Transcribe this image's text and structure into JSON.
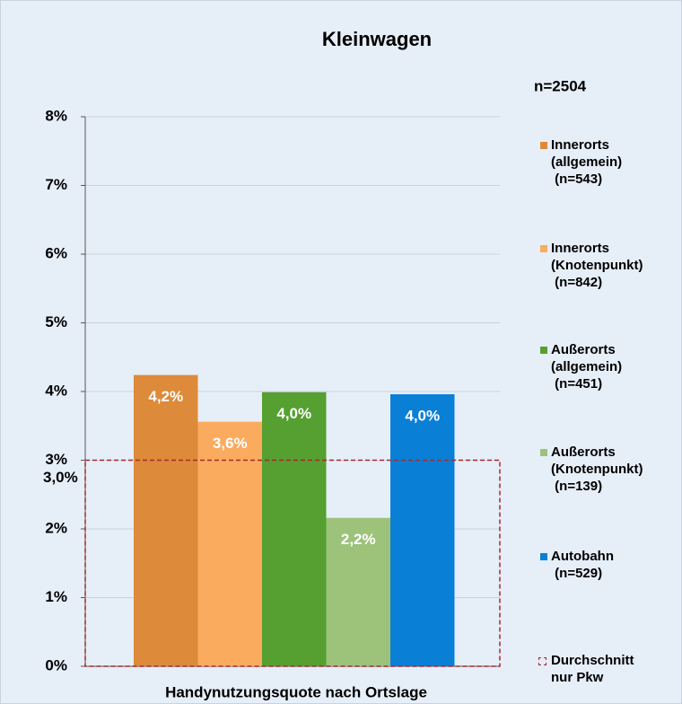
{
  "chart_data": {
    "type": "bar",
    "title": "Kleinwagen",
    "subtitle": "n=2504",
    "xlabel": "Handynutzungsquote nach Ortslage",
    "series": [
      {
        "name": "Innerorts\n(allgemein)\n (n=543)",
        "color": "#dd8a3a",
        "values": [
          4.24
        ],
        "value_labels": [
          "4,2%"
        ]
      },
      {
        "name": "Innerorts\n(Knotenpunkt)\n (n=842)",
        "color": "#fbab5e",
        "values": [
          3.56
        ],
        "value_labels": [
          "3,6%"
        ]
      },
      {
        "name": "Außerorts\n(allgemein)\n (n=451)",
        "color": "#55a030",
        "values": [
          3.99
        ],
        "value_labels": [
          "4,0%"
        ]
      },
      {
        "name": "Außerorts\n(Knotenpunkt)\n (n=139)",
        "color": "#9dc27a",
        "values": [
          2.16
        ],
        "value_labels": [
          "2,2%"
        ]
      },
      {
        "name": "Autobahn\n (n=529)",
        "color": "#0a7fd6",
        "values": [
          3.96
        ],
        "value_labels": [
          "4,0%"
        ]
      }
    ],
    "average": {
      "name": "Durchschnitt\nnur Pkw",
      "value": 3.0,
      "label": "3,0%",
      "color": "#a52a2a"
    },
    "ylim": [
      0,
      8
    ],
    "yticks": [
      {
        "value": 0,
        "label": "0%"
      },
      {
        "value": 1,
        "label": "1%"
      },
      {
        "value": 2,
        "label": "2%"
      },
      {
        "value": 3,
        "label": "3%"
      },
      {
        "value": 4,
        "label": "4%"
      },
      {
        "value": 5,
        "label": "5%"
      },
      {
        "value": 6,
        "label": "6%"
      },
      {
        "value": 7,
        "label": "7%"
      },
      {
        "value": 8,
        "label": "8%"
      }
    ],
    "grid": true
  }
}
